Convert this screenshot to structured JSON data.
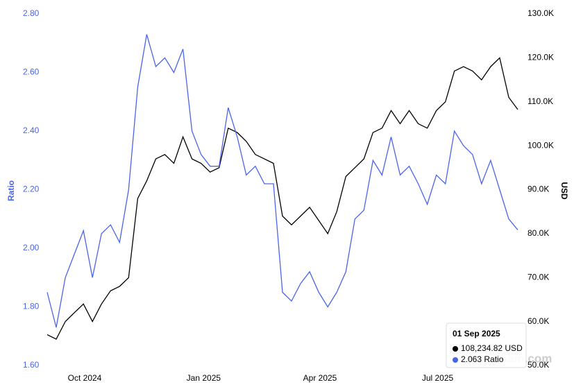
{
  "chart_data": {
    "type": "line",
    "x": [
      "2024-09-02",
      "2024-09-09",
      "2024-09-16",
      "2024-09-23",
      "2024-09-30",
      "2024-10-07",
      "2024-10-14",
      "2024-10-21",
      "2024-10-28",
      "2024-11-04",
      "2024-11-11",
      "2024-11-18",
      "2024-11-25",
      "2024-12-02",
      "2024-12-09",
      "2024-12-16",
      "2024-12-23",
      "2024-12-30",
      "2025-01-06",
      "2025-01-13",
      "2025-01-20",
      "2025-01-27",
      "2025-02-03",
      "2025-02-10",
      "2025-02-17",
      "2025-02-24",
      "2025-03-03",
      "2025-03-10",
      "2025-03-17",
      "2025-03-24",
      "2025-03-31",
      "2025-04-07",
      "2025-04-14",
      "2025-04-21",
      "2025-04-28",
      "2025-05-05",
      "2025-05-12",
      "2025-05-19",
      "2025-05-26",
      "2025-06-02",
      "2025-06-09",
      "2025-06-16",
      "2025-06-23",
      "2025-06-30",
      "2025-07-07",
      "2025-07-14",
      "2025-07-21",
      "2025-07-28",
      "2025-08-04",
      "2025-08-11",
      "2025-08-18",
      "2025-08-25",
      "2025-09-01"
    ],
    "series": [
      {
        "name": "USD",
        "color": "#000000",
        "axis": "y2",
        "values": [
          57000,
          56000,
          60000,
          62000,
          64000,
          60000,
          64000,
          67000,
          68000,
          70000,
          88000,
          92000,
          97000,
          98000,
          96000,
          102000,
          97000,
          96000,
          94000,
          95000,
          104000,
          103000,
          101000,
          98000,
          97000,
          96000,
          84000,
          82000,
          84000,
          86000,
          83000,
          80000,
          85000,
          93000,
          95000,
          97000,
          103000,
          104000,
          108000,
          105000,
          108000,
          105000,
          104000,
          108000,
          110000,
          117000,
          118000,
          117000,
          115000,
          118000,
          120000,
          111000,
          108234.82
        ]
      },
      {
        "name": "Ratio",
        "color": "#4a64e6",
        "values": [
          1.85,
          1.73,
          1.9,
          1.98,
          2.06,
          1.9,
          2.05,
          2.08,
          2.02,
          2.2,
          2.55,
          2.73,
          2.62,
          2.65,
          2.6,
          2.68,
          2.4,
          2.32,
          2.28,
          2.28,
          2.48,
          2.38,
          2.25,
          2.28,
          2.22,
          2.22,
          1.85,
          1.82,
          1.88,
          1.92,
          1.85,
          1.8,
          1.85,
          1.92,
          2.1,
          2.13,
          2.3,
          2.25,
          2.38,
          2.25,
          2.28,
          2.22,
          2.15,
          2.25,
          2.22,
          2.4,
          2.35,
          2.32,
          2.22,
          2.3,
          2.2,
          2.1,
          2.063
        ]
      }
    ],
    "ylabel": "Ratio",
    "y2label": "USD",
    "ylim": [
      1.6,
      2.8
    ],
    "yticks": [
      {
        "value": 1.6,
        "label": "1.60"
      },
      {
        "value": 1.8,
        "label": "1.80"
      },
      {
        "value": 2.0,
        "label": "2.00"
      },
      {
        "value": 2.2,
        "label": "2.20"
      },
      {
        "value": 2.4,
        "label": "2.40"
      },
      {
        "value": 2.6,
        "label": "2.60"
      },
      {
        "value": 2.8,
        "label": "2.80"
      }
    ],
    "y2lim": [
      50000,
      130000
    ],
    "y2ticks": [
      {
        "value": 50000,
        "label": "50.0K"
      },
      {
        "value": 60000,
        "label": "60.0K"
      },
      {
        "value": 70000,
        "label": "70.0K"
      },
      {
        "value": 80000,
        "label": "80.0K"
      },
      {
        "value": 90000,
        "label": "90.0K"
      },
      {
        "value": 100000,
        "label": "100.0K"
      },
      {
        "value": 110000,
        "label": "110.0K"
      },
      {
        "value": 120000,
        "label": "120.0K"
      },
      {
        "value": 130000,
        "label": "130.0K"
      }
    ],
    "xlim": [
      "2024-09-02",
      "2025-09-01"
    ],
    "xticks": [
      {
        "value": "2024-10-01",
        "label": "Oct 2024"
      },
      {
        "value": "2025-01-01",
        "label": "Jan 2025"
      },
      {
        "value": "2025-04-01",
        "label": "Apr 2025"
      },
      {
        "value": "2025-07-01",
        "label": "Jul 2025"
      }
    ],
    "grid": false,
    "watermark": "Blockchain.com",
    "tooltip": {
      "title": "01 Sep 2025",
      "labels": [
        "108,234.82 USD",
        "2.063 Ratio"
      ]
    }
  }
}
